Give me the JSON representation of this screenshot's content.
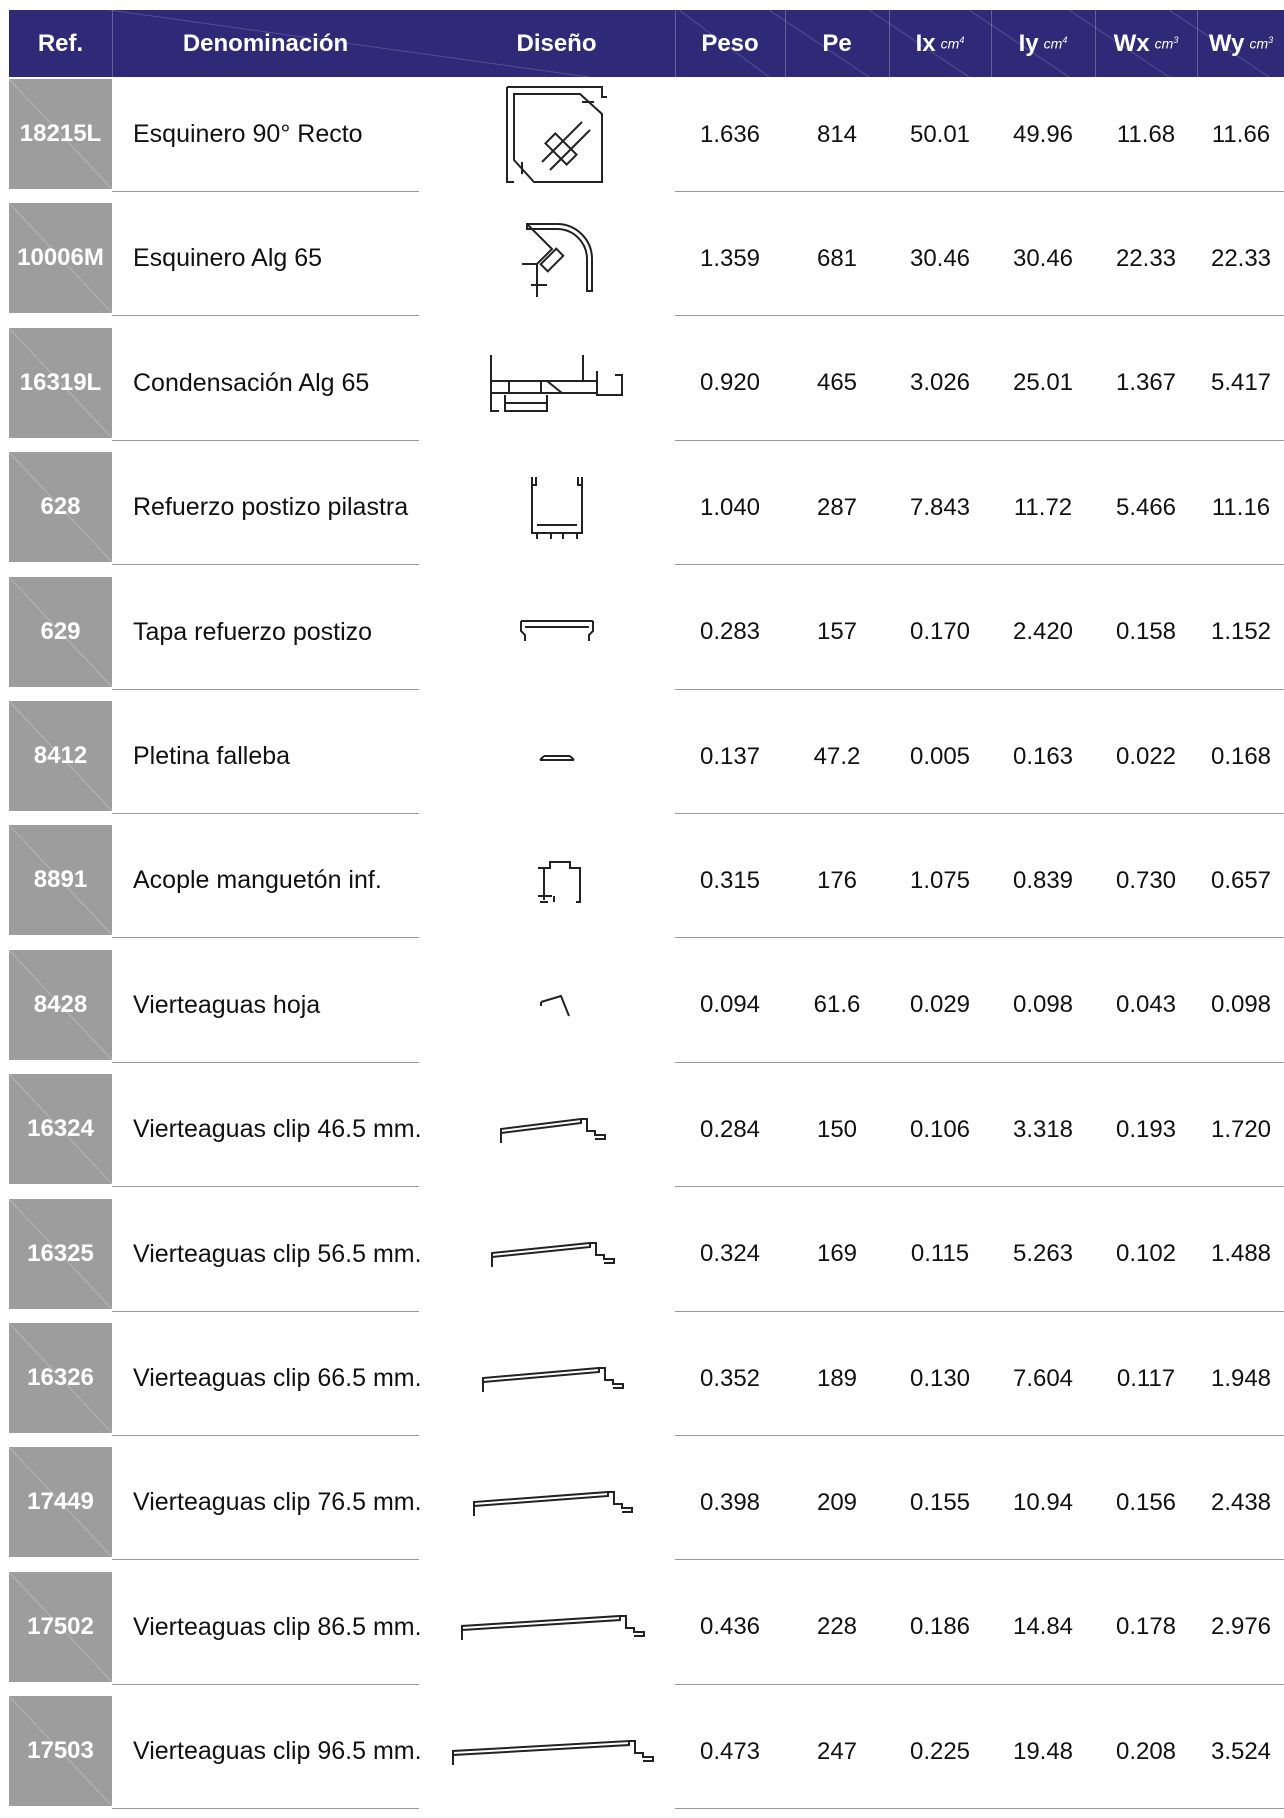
{
  "header": {
    "ref": "Ref.",
    "denominacion": "Denominación",
    "diseno": "Diseño",
    "peso": "Peso",
    "pe": "Pe",
    "ix": "Ix",
    "iy": "Iy",
    "wx": "Wx",
    "wy": "Wy",
    "unit_cm4": "cm",
    "unit_cm4_exp": "4",
    "unit_cm3": "cm",
    "unit_cm3_exp": "3",
    "color": "#2e2a78"
  },
  "ref_color": "#9d9d9d",
  "rows": [
    {
      "ref": "18215L",
      "name": "Esquinero 90° Recto",
      "icon": "corner-90-profile-icon",
      "peso": "1.636",
      "pe": "814",
      "ix": "50.01",
      "iy": "49.96",
      "wx": "11.68",
      "wy": "11.66"
    },
    {
      "ref": "10006M",
      "name": "Esquinero Alg 65",
      "icon": "rounded-corner-profile-icon",
      "peso": "1.359",
      "pe": "681",
      "ix": "30.46",
      "iy": "30.46",
      "wx": "22.33",
      "wy": "22.33"
    },
    {
      "ref": "16319L",
      "name": "Condensación Alg 65",
      "icon": "condensation-profile-icon",
      "peso": "0.920",
      "pe": "465",
      "ix": "3.026",
      "iy": "25.01",
      "wx": "1.367",
      "wy": "5.417"
    },
    {
      "ref": "628",
      "name": "Refuerzo postizo pilastra",
      "icon": "u-channel-profile-icon",
      "peso": "1.040",
      "pe": "287",
      "ix": "7.843",
      "iy": "11.72",
      "wx": "5.466",
      "wy": "11.16"
    },
    {
      "ref": "629",
      "name": "Tapa refuerzo postizo",
      "icon": "cover-profile-icon",
      "peso": "0.283",
      "pe": "157",
      "ix": "0.170",
      "iy": "2.420",
      "wx": "0.158",
      "wy": "1.152"
    },
    {
      "ref": "8412",
      "name": "Pletina falleba",
      "icon": "flat-bar-profile-icon",
      "peso": "0.137",
      "pe": "47.2",
      "ix": "0.005",
      "iy": "0.163",
      "wx": "0.022",
      "wy": "0.168"
    },
    {
      "ref": "8891",
      "name": "Acople manguetón inf.",
      "icon": "coupling-profile-icon",
      "peso": "0.315",
      "pe": "176",
      "ix": "1.075",
      "iy": "0.839",
      "wx": "0.730",
      "wy": "0.657"
    },
    {
      "ref": "8428",
      "name": "Vierteaguas hoja",
      "icon": "sash-drip-profile-icon",
      "peso": "0.094",
      "pe": "61.6",
      "ix": "0.029",
      "iy": "0.098",
      "wx": "0.043",
      "wy": "0.098"
    },
    {
      "ref": "16324",
      "name": "Vierteaguas clip 46.5 mm.",
      "icon": "clip-drip-profile-icon",
      "peso": "0.284",
      "pe": "150",
      "ix": "0.106",
      "iy": "3.318",
      "wx": "0.193",
      "wy": "1.720"
    },
    {
      "ref": "16325",
      "name": "Vierteaguas clip 56.5 mm.",
      "icon": "clip-drip-profile-icon",
      "peso": "0.324",
      "pe": "169",
      "ix": "0.115",
      "iy": "5.263",
      "wx": "0.102",
      "wy": "1.488"
    },
    {
      "ref": "16326",
      "name": "Vierteaguas clip 66.5 mm.",
      "icon": "clip-drip-profile-icon",
      "peso": "0.352",
      "pe": "189",
      "ix": "0.130",
      "iy": "7.604",
      "wx": "0.117",
      "wy": "1.948"
    },
    {
      "ref": "17449",
      "name": "Vierteaguas clip 76.5 mm.",
      "icon": "clip-drip-profile-icon",
      "peso": "0.398",
      "pe": "209",
      "ix": "0.155",
      "iy": "10.94",
      "wx": "0.156",
      "wy": "2.438"
    },
    {
      "ref": "17502",
      "name": "Vierteaguas clip 86.5 mm.",
      "icon": "clip-drip-profile-icon",
      "peso": "0.436",
      "pe": "228",
      "ix": "0.186",
      "iy": "14.84",
      "wx": "0.178",
      "wy": "2.976"
    },
    {
      "ref": "17503",
      "name": "Vierteaguas clip 96.5 mm.",
      "icon": "clip-drip-profile-icon",
      "peso": "0.473",
      "pe": "247",
      "ix": "0.225",
      "iy": "19.48",
      "wx": "0.208",
      "wy": "3.524"
    }
  ]
}
